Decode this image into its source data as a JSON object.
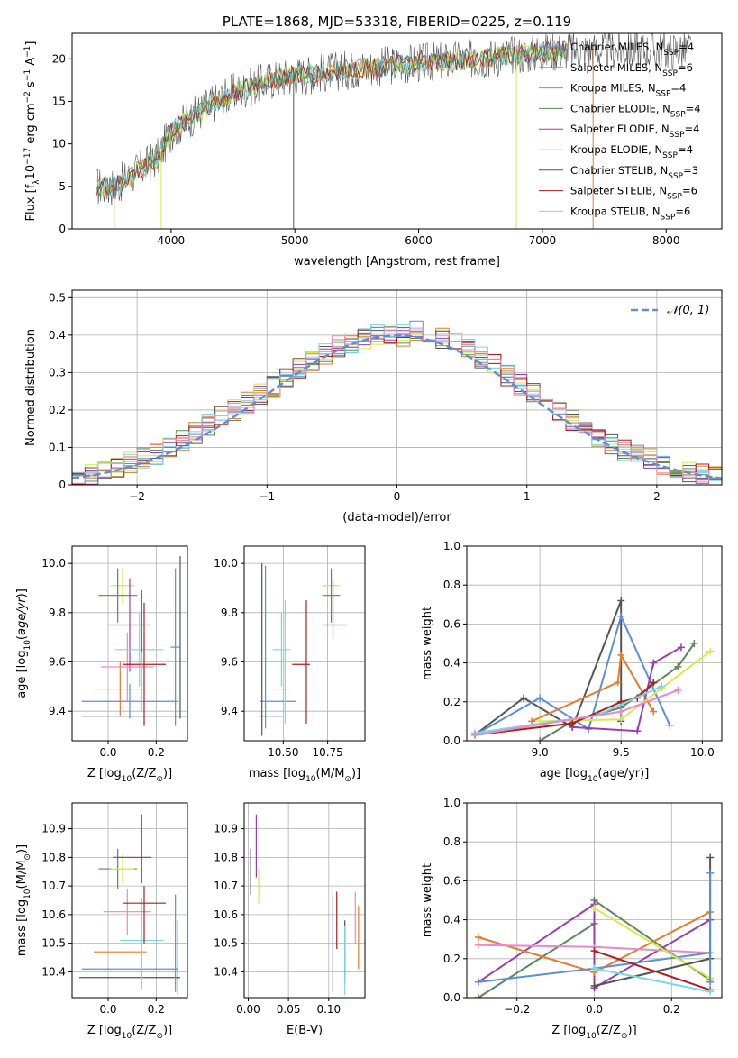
{
  "colors": {
    "Chabrier MILES": "#5b8fd6",
    "Salpeter MILES": "#e87a2c",
    "Kroupa MILES": "#c8862a",
    "Chabrier ELODIE": "#5a8a5a",
    "Salpeter ELODIE": "#9c3cb4",
    "Kroupa ELODIE": "#d8e84a",
    "Chabrier STELIB": "#555555",
    "Salpeter STELIB": "#b01c1c",
    "Kroupa STELIB": "#7ad8e8",
    "extra_pink": "#e88ac8",
    "fit_curve": "#5b8fd6"
  },
  "chart_data": [
    {
      "id": "spectrum",
      "type": "line",
      "title": "PLATE=1868, MJD=53318, FIBERID=0225, z=0.119",
      "xlabel": "wavelength [Angstrom, rest frame]",
      "ylabel_main": "Flux [f",
      "ylabel_sub": "λ",
      "ylabel_rest": "10",
      "ylabel_sup1": "−17",
      "ylabel_tail": " erg cm",
      "ylabel_sup2": "−2",
      "ylabel_tail2": " s",
      "ylabel_sup3": "−1",
      "ylabel_tail3": " A",
      "ylabel_sup4": "−1",
      "ylabel_end": "]",
      "xlim": [
        3200,
        8450
      ],
      "ylim": [
        0,
        23
      ],
      "xticks": [
        4000,
        5000,
        6000,
        7000,
        8000
      ],
      "yticks": [
        0,
        5,
        10,
        15,
        20
      ],
      "continuum": {
        "x": [
          3400,
          3550,
          3700,
          3900,
          4000,
          4100,
          4300,
          4500,
          4800,
          5000,
          5300,
          5600,
          6000,
          6300,
          6600,
          7000,
          7200
        ],
        "y": [
          5.0,
          5.0,
          6.5,
          8.5,
          11.5,
          12.5,
          14.5,
          16.0,
          17.5,
          18.0,
          18.5,
          19.0,
          19.5,
          19.8,
          20.2,
          20.8,
          21.0
        ]
      },
      "legend": [
        {
          "label": "Chabrier MILES, N",
          "sub": "SSP",
          "tail": "=4"
        },
        {
          "label": "Salpeter MILES, N",
          "sub": "SSP",
          "tail": "=6"
        },
        {
          "label": "Kroupa MILES, N",
          "sub": "SSP",
          "tail": "=4"
        },
        {
          "label": "Chabrier ELODIE, N",
          "sub": "SSP",
          "tail": "=4"
        },
        {
          "label": "Salpeter ELODIE, N",
          "sub": "SSP",
          "tail": "=4"
        },
        {
          "label": "Kroupa ELODIE, N",
          "sub": "SSP",
          "tail": "=4"
        },
        {
          "label": "Chabrier STELIB, N",
          "sub": "SSP",
          "tail": "=3"
        },
        {
          "label": "Salpeter STELIB, N",
          "sub": "SSP",
          "tail": "=6"
        },
        {
          "label": "Kroupa STELIB, N",
          "sub": "SSP",
          "tail": "=6"
        }
      ]
    },
    {
      "id": "residuals",
      "type": "histogram",
      "xlabel": "(data-model)/error",
      "ylabel": "Normed distribution",
      "xlim": [
        -2.5,
        2.5
      ],
      "ylim": [
        0,
        0.52
      ],
      "xticks": [
        -2,
        -1,
        0,
        1,
        2
      ],
      "xticklabels": [
        "−2",
        "−1",
        "0",
        "1",
        "2"
      ],
      "yticks": [
        0.0,
        0.1,
        0.2,
        0.3,
        0.4,
        0.5
      ],
      "legend_label": "𝒩(0, 1)",
      "bin_width": 0.1,
      "bin_start": -2.5,
      "base_values": [
        0.025,
        0.03,
        0.04,
        0.05,
        0.06,
        0.07,
        0.08,
        0.1,
        0.12,
        0.14,
        0.16,
        0.18,
        0.2,
        0.22,
        0.24,
        0.26,
        0.28,
        0.31,
        0.33,
        0.35,
        0.37,
        0.38,
        0.39,
        0.4,
        0.4,
        0.4,
        0.41,
        0.4,
        0.39,
        0.38,
        0.36,
        0.34,
        0.32,
        0.29,
        0.27,
        0.25,
        0.22,
        0.2,
        0.17,
        0.15,
        0.13,
        0.11,
        0.09,
        0.08,
        0.07,
        0.05,
        0.04,
        0.035,
        0.03,
        0.025
      ]
    },
    {
      "id": "z-age",
      "type": "errorbar",
      "xlabel": "Z [log",
      "xlabel_sub": "10",
      "xlabel_tail": "(Z/Z",
      "xlabel_sub2": "⊙",
      "xlabel_end": ")]",
      "ylabel": "age  [log",
      "ylabel_sub": "10",
      "ylabel_tail": "(age/yr)]",
      "xlim": [
        -0.15,
        0.33
      ],
      "ylim": [
        9.28,
        10.07
      ],
      "xticks": [
        0.0,
        0.2
      ],
      "xticklabels": [
        "0.0",
        "0.2"
      ],
      "yticks": [
        9.4,
        9.6,
        9.8,
        10.0
      ],
      "yticklabels": [
        "9.4",
        "9.6",
        "9.8",
        "10.0"
      ],
      "points": [
        {
          "series": "Chabrier MILES",
          "x": 0.09,
          "xerr": 0.2,
          "y": 9.44,
          "yerr": 0.07
        },
        {
          "series": "Salpeter MILES",
          "x": 0.05,
          "xerr": 0.11,
          "y": 9.49,
          "yerr": 0.11
        },
        {
          "series": "Kroupa ELODIE",
          "x": 0.06,
          "xerr": 0.05,
          "y": 9.91,
          "yerr": 0.07
        },
        {
          "series": "Chabrier ELODIE",
          "x": 0.04,
          "xerr": 0.08,
          "y": 9.87,
          "yerr": 0.11
        },
        {
          "series": "Salpeter ELODIE",
          "x": 0.09,
          "xerr": 0.09,
          "y": 9.75,
          "yerr": 0.19
        },
        {
          "series": "Kroupa STELIB",
          "x": 0.13,
          "xerr": 0.1,
          "y": 9.65,
          "yerr": 0.15
        },
        {
          "series": "extra_pink",
          "x": 0.08,
          "xerr": 0.11,
          "y": 9.58,
          "yerr": 0.14
        },
        {
          "series": "Salpeter STELIB",
          "x": 0.15,
          "xerr": 0.09,
          "y": 9.59,
          "yerr": 0.25
        },
        {
          "series": "Chabrier MILES",
          "x": 0.28,
          "xerr": 0.02,
          "y": 9.66,
          "yerr": 0.32
        },
        {
          "series": "Chabrier STELIB",
          "x": 0.29,
          "xerr": 0.4,
          "y": 9.38,
          "yerr": 0.0
        },
        {
          "series": "Chabrier STELIB",
          "x": 0.3,
          "xerr": 0.0,
          "y": 9.7,
          "yerr": 0.33
        },
        {
          "series": "Salpeter ELODIE",
          "x": 0.14,
          "xerr": 0.0,
          "y": 9.72,
          "yerr": 0.17
        },
        {
          "series": "Kroupa STELIB",
          "x": 0.14,
          "xerr": 0.0,
          "y": 9.52,
          "yerr": 0.12
        }
      ]
    },
    {
      "id": "mass-age",
      "type": "errorbar",
      "xlabel": "mass [log",
      "xlabel_sub": "10",
      "xlabel_tail": "(M/M",
      "xlabel_sub2": "⊙",
      "xlabel_end": ")]",
      "xlim": [
        10.28,
        10.96
      ],
      "ylim": [
        9.28,
        10.07
      ],
      "xticks": [
        10.5,
        10.75
      ],
      "xticklabels": [
        "10.50",
        "10.75"
      ],
      "yticks": [
        9.4,
        9.6,
        9.8,
        10.0
      ],
      "yticklabels": [
        "9.4",
        "9.6",
        "9.8",
        "10.0"
      ],
      "points": [
        {
          "series": "Chabrier MILES",
          "x": 10.47,
          "xerr": 0.1,
          "y": 9.44,
          "yerr": 0.0
        },
        {
          "series": "Chabrier MILES",
          "x": 10.4,
          "xerr": 0.0,
          "y": 9.66,
          "yerr": 0.33
        },
        {
          "series": "Chabrier STELIB",
          "x": 10.43,
          "xerr": 0.07,
          "y": 9.38,
          "yerr": 0.0
        },
        {
          "series": "Chabrier STELIB",
          "x": 10.38,
          "xerr": 0.0,
          "y": 9.65,
          "yerr": 0.35
        },
        {
          "series": "Salpeter MILES",
          "x": 10.49,
          "xerr": 0.05,
          "y": 9.49,
          "yerr": 0.0
        },
        {
          "series": "Kroupa STELIB",
          "x": 10.49,
          "xerr": 0.05,
          "y": 9.65,
          "yerr": 0.15
        },
        {
          "series": "Kroupa STELIB",
          "x": 10.51,
          "xerr": 0.0,
          "y": 9.6,
          "yerr": 0.25
        },
        {
          "series": "Salpeter STELIB",
          "x": 10.6,
          "xerr": 0.05,
          "y": 9.59,
          "yerr": 0.0
        },
        {
          "series": "Salpeter STELIB",
          "x": 10.63,
          "xerr": 0.0,
          "y": 9.6,
          "yerr": 0.25
        },
        {
          "series": "Kroupa ELODIE",
          "x": 10.77,
          "xerr": 0.05,
          "y": 9.91,
          "yerr": 0.0
        },
        {
          "series": "Chabrier ELODIE",
          "x": 10.77,
          "xerr": 0.05,
          "y": 9.87,
          "yerr": 0.11
        },
        {
          "series": "Salpeter ELODIE",
          "x": 10.79,
          "xerr": 0.07,
          "y": 9.75,
          "yerr": 0.0
        },
        {
          "series": "Salpeter ELODIE",
          "x": 10.78,
          "xerr": 0.0,
          "y": 9.82,
          "yerr": 0.12
        }
      ]
    },
    {
      "id": "age-weight",
      "type": "line",
      "xlabel": "age  [log",
      "xlabel_sub": "10",
      "xlabel_tail": "(age/yr)]",
      "ylabel": "mass weight",
      "xlim": [
        8.55,
        10.12
      ],
      "ylim": [
        0,
        1.0
      ],
      "xticks": [
        9.0,
        9.5,
        10.0
      ],
      "xticklabels": [
        "9.0",
        "9.5",
        "10.0"
      ],
      "yticks": [
        0.0,
        0.2,
        0.4,
        0.6,
        0.8,
        1.0
      ],
      "yticklabels": [
        "0.0",
        "0.2",
        "0.4",
        "0.6",
        "0.8",
        "1.0"
      ],
      "series": [
        {
          "name": "Chabrier STELIB",
          "x": [
            8.6,
            8.9,
            9.2,
            9.5,
            9.5
          ],
          "y": [
            0.03,
            0.22,
            0.07,
            0.72,
            0.1
          ]
        },
        {
          "name": "Chabrier MILES",
          "x": [
            8.6,
            9.0,
            9.3,
            9.5,
            9.8
          ],
          "y": [
            0.03,
            0.22,
            0.06,
            0.64,
            0.08
          ]
        },
        {
          "name": "Salpeter MILES",
          "x": [
            8.95,
            9.48,
            9.5,
            9.7
          ],
          "y": [
            0.1,
            0.3,
            0.44,
            0.15
          ]
        },
        {
          "name": "Chabrier ELODIE",
          "x": [
            9.0,
            9.2,
            9.5,
            9.85,
            9.95
          ],
          "y": [
            0.0,
            0.1,
            0.17,
            0.38,
            0.5
          ]
        },
        {
          "name": "Salpeter ELODIE",
          "x": [
            9.2,
            9.6,
            9.7,
            9.87
          ],
          "y": [
            0.07,
            0.05,
            0.4,
            0.48
          ]
        },
        {
          "name": "Kroupa ELODIE",
          "x": [
            9.0,
            9.5,
            9.75,
            10.05
          ],
          "y": [
            0.1,
            0.11,
            0.27,
            0.46
          ]
        },
        {
          "name": "Salpeter STELIB",
          "x": [
            8.6,
            9.2,
            9.5,
            9.6,
            9.7
          ],
          "y": [
            0.03,
            0.09,
            0.2,
            0.22,
            0.3
          ]
        },
        {
          "name": "Kroupa STELIB",
          "x": [
            8.6,
            9.35,
            9.75
          ],
          "y": [
            0.04,
            0.13,
            0.28
          ]
        },
        {
          "name": "extra_pink",
          "x": [
            8.6,
            9.5,
            9.85
          ],
          "y": [
            0.03,
            0.15,
            0.26
          ]
        }
      ]
    },
    {
      "id": "z-mass",
      "type": "errorbar",
      "xlabel": "Z [log",
      "xlabel_sub": "10",
      "xlabel_tail": "(Z/Z",
      "xlabel_sub2": "⊙",
      "xlabel_end": ")]",
      "ylabel": "mass [log",
      "ylabel_sub": "10",
      "ylabel_tail": "(M/M",
      "ylabel_sub2": "⊙",
      "ylabel_end": ")]",
      "xlim": [
        -0.15,
        0.33
      ],
      "ylim": [
        10.31,
        10.99
      ],
      "xticks": [
        0.0,
        0.2
      ],
      "xticklabels": [
        "0.0",
        "0.2"
      ],
      "yticks": [
        10.4,
        10.5,
        10.6,
        10.7,
        10.8,
        10.9
      ],
      "yticklabels": [
        "10.4",
        "10.5",
        "10.6",
        "10.7",
        "10.8",
        "10.9"
      ],
      "points": [
        {
          "series": "Chabrier STELIB",
          "x": 0.09,
          "xerr": 0.21,
          "y": 10.38,
          "yerr": 0.0
        },
        {
          "series": "Chabrier MILES",
          "x": 0.09,
          "xerr": 0.2,
          "y": 10.41,
          "yerr": 0.0
        },
        {
          "series": "Chabrier MILES",
          "x": 0.28,
          "xerr": 0.0,
          "y": 10.5,
          "yerr": 0.17
        },
        {
          "series": "Chabrier STELIB",
          "x": 0.29,
          "xerr": 0.0,
          "y": 10.45,
          "yerr": 0.13
        },
        {
          "series": "Salpeter MILES",
          "x": 0.05,
          "xerr": 0.11,
          "y": 10.47,
          "yerr": 0.0
        },
        {
          "series": "Kroupa STELIB",
          "x": 0.14,
          "xerr": 0.09,
          "y": 10.51,
          "yerr": 0.0
        },
        {
          "series": "Kroupa STELIB",
          "x": 0.14,
          "xerr": 0.0,
          "y": 10.5,
          "yerr": 0.16
        },
        {
          "series": "extra_pink",
          "x": 0.08,
          "xerr": 0.1,
          "y": 10.61,
          "yerr": 0.08
        },
        {
          "series": "Salpeter STELIB",
          "x": 0.15,
          "xerr": 0.09,
          "y": 10.64,
          "yerr": 0.0
        },
        {
          "series": "Salpeter STELIB",
          "x": 0.15,
          "xerr": 0.0,
          "y": 10.6,
          "yerr": 0.1
        },
        {
          "series": "Chabrier ELODIE",
          "x": 0.04,
          "xerr": 0.08,
          "y": 10.76,
          "yerr": 0.07
        },
        {
          "series": "Kroupa ELODIE",
          "x": 0.06,
          "xerr": 0.05,
          "y": 10.76,
          "yerr": 0.05
        },
        {
          "series": "Salpeter ELODIE",
          "x": 0.1,
          "xerr": 0.08,
          "y": 10.8,
          "yerr": 0.0
        },
        {
          "series": "Salpeter ELODIE",
          "x": 0.14,
          "xerr": 0.0,
          "y": 10.83,
          "yerr": 0.12
        }
      ]
    },
    {
      "id": "ebv-mass",
      "type": "errorbar",
      "xlabel": "E(B-V)",
      "xlim": [
        -0.005,
        0.145
      ],
      "ylim": [
        10.31,
        10.99
      ],
      "xticks": [
        0.0,
        0.05,
        0.1
      ],
      "xticklabels": [
        "0.00",
        "0.05",
        "0.10"
      ],
      "yticks": [
        10.4,
        10.5,
        10.6,
        10.7,
        10.8,
        10.9
      ],
      "yticklabels": [
        "10.4",
        "10.5",
        "10.6",
        "10.7",
        "10.8",
        "10.9"
      ],
      "points": [
        {
          "series": "Chabrier STELIB",
          "x": 0.003,
          "xerr": 0.0,
          "y": 10.75,
          "yerr": 0.08
        },
        {
          "series": "Salpeter ELODIE",
          "x": 0.01,
          "xerr": 0.0,
          "y": 10.84,
          "yerr": 0.11
        },
        {
          "series": "Kroupa ELODIE",
          "x": 0.013,
          "xerr": 0.0,
          "y": 10.7,
          "yerr": 0.06
        },
        {
          "series": "Salpeter STELIB",
          "x": 0.11,
          "xerr": 0.0,
          "y": 10.58,
          "yerr": 0.1
        },
        {
          "series": "Chabrier MILES",
          "x": 0.105,
          "xerr": 0.0,
          "y": 10.5,
          "yerr": 0.17
        },
        {
          "series": "Chabrier STELIB",
          "x": 0.12,
          "xerr": 0.0,
          "y": 10.47,
          "yerr": 0.11
        },
        {
          "series": "Kroupa STELIB",
          "x": 0.12,
          "xerr": 0.0,
          "y": 10.44,
          "yerr": 0.12
        },
        {
          "series": "extra_pink",
          "x": 0.133,
          "xerr": 0.0,
          "y": 10.59,
          "yerr": 0.09
        },
        {
          "series": "Salpeter MILES",
          "x": 0.137,
          "xerr": 0.0,
          "y": 10.52,
          "yerr": 0.11
        }
      ]
    },
    {
      "id": "z-weight",
      "type": "line",
      "xlabel": "Z [log",
      "xlabel_sub": "10",
      "xlabel_tail": "(Z/Z",
      "xlabel_sub2": "⊙",
      "xlabel_end": ")]",
      "ylabel": "mass weight",
      "xlim": [
        -0.33,
        0.33
      ],
      "ylim": [
        0,
        1.0
      ],
      "xticks": [
        -0.2,
        0.0,
        0.2
      ],
      "xticklabels": [
        "−0.2",
        "0.0",
        "0.2"
      ],
      "yticks": [
        0.0,
        0.2,
        0.4,
        0.6,
        0.8,
        1.0
      ],
      "yticklabels": [
        "0.0",
        "0.2",
        "0.4",
        "0.6",
        "0.8",
        "1.0"
      ],
      "series": [
        {
          "name": "Chabrier ELODIE",
          "x": [
            -0.3,
            0.0,
            0.0,
            0.3
          ],
          "y": [
            0.0,
            0.38,
            0.5,
            0.09
          ]
        },
        {
          "name": "Salpeter ELODIE",
          "x": [
            -0.3,
            0.0,
            0.0,
            0.3
          ],
          "y": [
            0.08,
            0.48,
            0.05,
            0.4
          ]
        },
        {
          "name": "Salpeter MILES",
          "x": [
            -0.3,
            0.0,
            0.3
          ],
          "y": [
            0.31,
            0.13,
            0.44
          ]
        },
        {
          "name": "extra_pink",
          "x": [
            -0.3,
            0.0,
            0.3
          ],
          "y": [
            0.27,
            0.26,
            0.23
          ]
        },
        {
          "name": "Chabrier MILES",
          "x": [
            -0.3,
            0.0,
            0.3
          ],
          "y": [
            0.08,
            0.15,
            0.23
          ]
        },
        {
          "name": "Kroupa ELODIE",
          "x": [
            0.0,
            0.3
          ],
          "y": [
            0.46,
            0.1
          ]
        },
        {
          "name": "Salpeter STELIB",
          "x": [
            0.0,
            0.3
          ],
          "y": [
            0.24,
            0.04
          ]
        },
        {
          "name": "Chabrier STELIB",
          "x": [
            0.0,
            0.3,
            0.3
          ],
          "y": [
            0.06,
            0.2,
            0.72
          ]
        },
        {
          "name": "Kroupa STELIB",
          "x": [
            0.0,
            0.3
          ],
          "y": [
            0.15,
            0.03
          ]
        },
        {
          "name": "Chabrier MILES",
          "x": [
            0.3,
            0.3
          ],
          "y": [
            0.64,
            0.08
          ]
        }
      ]
    }
  ]
}
